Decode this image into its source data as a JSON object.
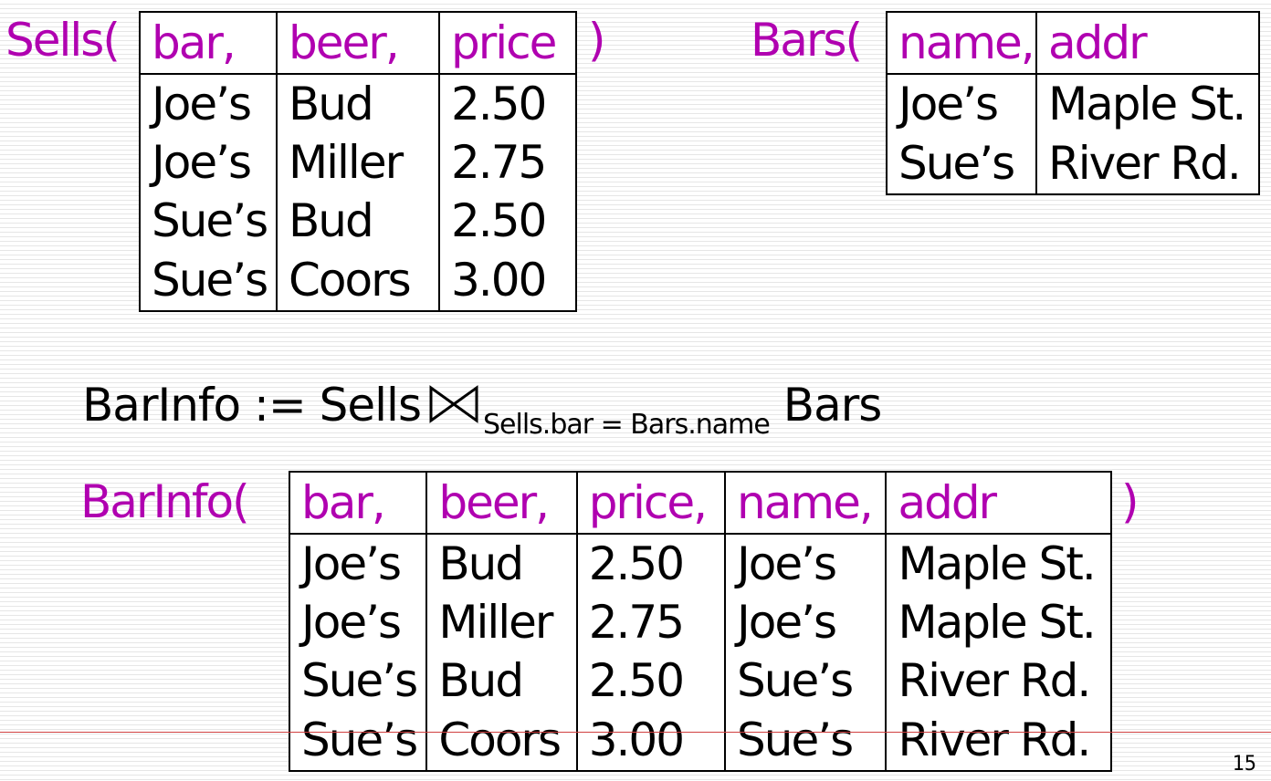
{
  "sells": {
    "label": "Sells(",
    "close": ")",
    "headers": [
      "bar,",
      "beer,",
      "price"
    ],
    "rows": [
      [
        "Joe’s",
        "Bud",
        "2.50"
      ],
      [
        "Joe’s",
        "Miller",
        "2.75"
      ],
      [
        "Sue’s",
        "Bud",
        "2.50"
      ],
      [
        "Sue’s",
        "Coors",
        "3.00"
      ]
    ]
  },
  "bars": {
    "label": "Bars(",
    "headers": [
      "name,",
      "addr"
    ],
    "rows": [
      [
        "Joe’s",
        "Maple St."
      ],
      [
        "Sue’s",
        "River Rd."
      ]
    ]
  },
  "equation": {
    "lhs": "BarInfo := Sells",
    "symbol": "⋈",
    "condition": "Sells.bar = Bars.name",
    "rhs": "Bars"
  },
  "barinfo": {
    "label": "BarInfo(",
    "close": ")",
    "headers": [
      "bar,",
      "beer,",
      "price,",
      "name,",
      "addr"
    ],
    "rows": [
      [
        "Joe’s",
        "Bud",
        "2.50",
        "Joe’s",
        "Maple St."
      ],
      [
        "Joe’s",
        "Miller",
        "2.75",
        "Joe’s",
        "Maple St."
      ],
      [
        "Sue’s",
        "Bud",
        "2.50",
        "Sue’s",
        "River Rd."
      ],
      [
        "Sue’s",
        "Coors",
        "3.00",
        "Sue’s",
        "River Rd."
      ]
    ]
  },
  "page_number": "15",
  "colors": {
    "label": "#b000b0",
    "text": "#000000",
    "rule": "#d04040"
  }
}
